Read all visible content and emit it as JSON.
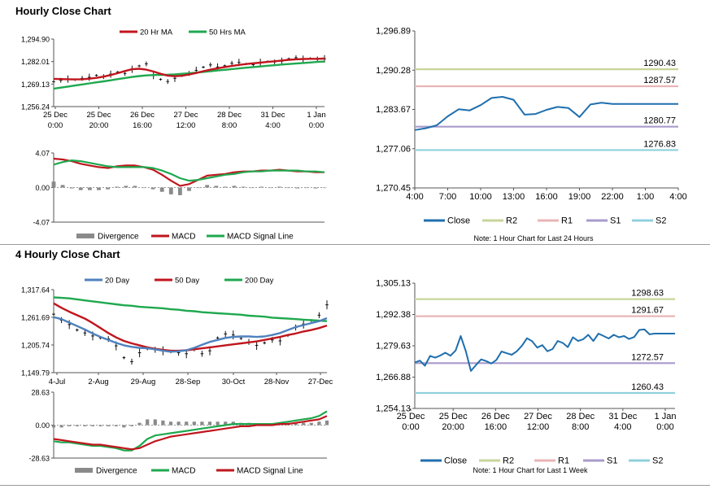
{
  "sections": {
    "hourly_title": "Hourly Close Chart",
    "four_hourly_title": "4 Hourly Close Chart"
  },
  "colors": {
    "ma_short": "#c0161d",
    "ma_long": "#1fa84f",
    "ma_mid_blue": "#4f81bd",
    "close": "#1f6fae",
    "r2": "#c7d59a",
    "r1": "#e9b5b5",
    "s1": "#a99bcb",
    "s2": "#8fd0de",
    "divergence": "#8a8a8a"
  },
  "chart_data": [
    {
      "id": "hourly_price",
      "type": "line",
      "title": "Hourly Close Chart",
      "legend": [
        "20 Hr MA",
        "50 Hrs MA"
      ],
      "y_ticks": [
        "1,294.90",
        "1,282.01",
        "1,269.13",
        "1,256.24"
      ],
      "ylim": [
        1256.24,
        1294.9
      ],
      "x_ticks": [
        [
          "25 Dec",
          "0:00"
        ],
        [
          "25 Dec",
          "20:00"
        ],
        [
          "26 Dec",
          "16:00"
        ],
        [
          "27 Dec",
          "12:00"
        ],
        [
          "28 Dec",
          "8:00"
        ],
        [
          "31 Dec",
          "4:00"
        ],
        [
          "1 Jan",
          "0:00"
        ]
      ],
      "series": [
        {
          "name": "Price",
          "values": [
            1270.5,
            1271.3,
            1272.0,
            1271.6,
            1272.4,
            1273.0,
            1274.1,
            1273.4,
            1274.8,
            1276.0,
            1275.2,
            1277.6,
            1279.5,
            1280.7,
            1274.0,
            1271.8,
            1270.6,
            1272.4,
            1273.9,
            1275.2,
            1277.0,
            1278.8,
            1280.1,
            1278.9,
            1279.6,
            1281.0,
            1281.5,
            1280.6,
            1280.2,
            1281.6,
            1282.0,
            1281.8,
            1282.2,
            1283.6,
            1284.2,
            1283.4,
            1283.8,
            1283.5,
            1283.6
          ]
        },
        {
          "name": "20 Hr MA",
          "values": [
            1272.1,
            1272.0,
            1271.9,
            1271.8,
            1271.9,
            1272.2,
            1272.7,
            1273.4,
            1274.3,
            1275.4,
            1276.6,
            1277.6,
            1277.9,
            1277.4,
            1276.3,
            1275.0,
            1274.0,
            1273.6,
            1273.9,
            1274.6,
            1275.5,
            1276.5,
            1277.4,
            1278.2,
            1278.9,
            1279.5,
            1280.1,
            1280.6,
            1281.0,
            1281.4,
            1281.8,
            1282.2,
            1282.6,
            1283.0,
            1283.3,
            1283.5,
            1283.6,
            1283.6,
            1283.7
          ]
        },
        {
          "name": "50 Hrs MA",
          "values": [
            1266.5,
            1267.1,
            1267.7,
            1268.3,
            1268.9,
            1269.5,
            1270.1,
            1270.7,
            1271.3,
            1272.0,
            1272.6,
            1273.2,
            1273.7,
            1274.1,
            1274.3,
            1274.4,
            1274.5,
            1274.7,
            1275.0,
            1275.3,
            1275.7,
            1276.1,
            1276.5,
            1276.9,
            1277.3,
            1277.7,
            1278.1,
            1278.5,
            1278.9,
            1279.2,
            1279.6,
            1279.9,
            1280.3,
            1280.6,
            1280.9,
            1281.2,
            1281.5,
            1281.8,
            1282.0
          ]
        }
      ]
    },
    {
      "id": "hourly_macd",
      "type": "line",
      "legend": [
        "Divergence",
        "MACD",
        "MACD Signal Line"
      ],
      "y_ticks": [
        "4.07",
        "0.00",
        "-4.07"
      ],
      "ylim": [
        -4.07,
        4.07
      ],
      "series": [
        {
          "name": "MACD",
          "values": [
            3.4,
            3.3,
            3.1,
            2.8,
            2.6,
            2.4,
            2.3,
            2.5,
            2.6,
            2.6,
            2.4,
            2.1,
            1.5,
            0.8,
            0.2,
            0.4,
            0.9,
            1.4,
            1.5,
            1.6,
            1.8,
            1.9,
            1.9,
            2.0,
            2.0,
            2.1,
            2.0,
            1.9,
            1.9,
            1.8,
            1.8
          ]
        },
        {
          "name": "MACD Signal Line",
          "values": [
            2.7,
            3.0,
            3.2,
            3.1,
            2.9,
            2.7,
            2.5,
            2.4,
            2.4,
            2.4,
            2.4,
            2.3,
            2.0,
            1.6,
            1.1,
            0.8,
            0.9,
            1.1,
            1.3,
            1.5,
            1.6,
            1.8,
            1.9,
            1.9,
            2.0,
            2.0,
            2.0,
            2.0,
            1.9,
            1.9,
            1.8
          ]
        },
        {
          "name": "Divergence",
          "values": [
            0.7,
            0.3,
            -0.1,
            -0.3,
            -0.3,
            -0.3,
            -0.2,
            0.1,
            0.2,
            0.2,
            0.0,
            -0.2,
            -0.5,
            -0.8,
            -0.9,
            -0.4,
            0.0,
            0.3,
            0.2,
            0.1,
            0.2,
            0.1,
            0.0,
            0.1,
            0.0,
            0.1,
            0.0,
            -0.1,
            0.0,
            -0.1,
            0.0
          ]
        }
      ]
    },
    {
      "id": "hourly_close",
      "type": "line",
      "y_ticks": [
        "1,296.89",
        "1,290.28",
        "1,283.67",
        "1,277.06",
        "1,270.45"
      ],
      "ylim": [
        1270.45,
        1296.89
      ],
      "x_ticks": [
        "4:00",
        "7:00",
        "10:00",
        "13:00",
        "16:00",
        "19:00",
        "22:00",
        "1:00",
        "4:00"
      ],
      "levels": [
        {
          "name": "R2",
          "value": 1290.43,
          "label": "1290.43",
          "color_key": "r2"
        },
        {
          "name": "R1",
          "value": 1287.57,
          "label": "1287.57",
          "color_key": "r1"
        },
        {
          "name": "S1",
          "value": 1280.77,
          "label": "1280.77",
          "color_key": "s1"
        },
        {
          "name": "S2",
          "value": 1276.83,
          "label": "1276.83",
          "color_key": "s2"
        }
      ],
      "series": [
        {
          "name": "Close",
          "values": [
            1280.2,
            1280.5,
            1281.0,
            1282.5,
            1283.7,
            1283.5,
            1284.4,
            1285.6,
            1285.8,
            1285.3,
            1282.8,
            1282.9,
            1283.6,
            1284.1,
            1283.9,
            1282.4,
            1284.5,
            1284.8,
            1284.6,
            1284.6,
            1284.6,
            1284.6,
            1284.6,
            1284.6,
            1284.6
          ]
        }
      ],
      "legend": [
        "Close",
        "R2",
        "R1",
        "S1",
        "S2"
      ],
      "note": "Note: 1 Hour Chart for Last 24 Hours"
    },
    {
      "id": "four_hourly_price",
      "type": "line",
      "title": "4 Hourly Close Chart",
      "legend": [
        "20 Day",
        "50 Day",
        "200 Day"
      ],
      "y_ticks": [
        "1,317.64",
        "1,261.69",
        "1,205.74",
        "1,149.79"
      ],
      "ylim": [
        1149.79,
        1317.64
      ],
      "x_ticks": [
        "4-Jul",
        "2-Aug",
        "29-Aug",
        "28-Sep",
        "30-Oct",
        "28-Nov",
        "27-Dec"
      ],
      "series": [
        {
          "name": "Price",
          "values": [
            1268,
            1256,
            1247,
            1236,
            1230,
            1224,
            1220,
            1218,
            1204,
            1180,
            1172,
            1190,
            1198,
            1196,
            1194,
            1192,
            1190,
            1188,
            1196,
            1188,
            1194,
            1220,
            1228,
            1226,
            1219,
            1212,
            1205,
            1210,
            1216,
            1214,
            1225,
            1241,
            1248,
            1255,
            1266,
            1287
          ]
        },
        {
          "name": "20 Day",
          "values": [
            1262,
            1258,
            1251,
            1244,
            1237,
            1229,
            1222,
            1216,
            1210,
            1205,
            1202,
            1200,
            1199,
            1197,
            1194,
            1192,
            1193,
            1195,
            1200,
            1206,
            1212,
            1216,
            1220,
            1222,
            1223,
            1223,
            1222,
            1223,
            1226,
            1230,
            1236,
            1242,
            1246,
            1250,
            1254,
            1260
          ]
        },
        {
          "name": "50 Day",
          "values": [
            1290,
            1281,
            1273,
            1266,
            1259,
            1250,
            1240,
            1230,
            1221,
            1214,
            1209,
            1205,
            1201,
            1198,
            1196,
            1194,
            1194,
            1195,
            1197,
            1199,
            1201,
            1203,
            1205,
            1207,
            1209,
            1211,
            1213,
            1216,
            1219,
            1222,
            1226,
            1229,
            1233,
            1236,
            1240,
            1245
          ]
        },
        {
          "name": "200 Day",
          "values": [
            1302,
            1301,
            1300,
            1298,
            1296,
            1294,
            1292,
            1290,
            1288,
            1286,
            1285,
            1283,
            1282,
            1281,
            1280,
            1278,
            1277,
            1275,
            1274,
            1272,
            1271,
            1270,
            1269,
            1268,
            1267,
            1265,
            1264,
            1263,
            1261,
            1260,
            1259,
            1258,
            1257,
            1256,
            1255,
            1254
          ]
        }
      ]
    },
    {
      "id": "four_hourly_macd",
      "type": "line",
      "legend": [
        "Divergence",
        "MACD",
        "MACD Signal Line"
      ],
      "y_ticks": [
        "28.63",
        "0.00",
        "-28.63"
      ],
      "ylim": [
        -28.63,
        28.63
      ],
      "series": [
        {
          "name": "MACD",
          "values": [
            -14,
            -15,
            -15,
            -16,
            -17,
            -18,
            -18,
            -19,
            -20,
            -22,
            -22,
            -18,
            -12,
            -9,
            -8,
            -7,
            -6,
            -5,
            -4,
            -3,
            -2,
            -1,
            0,
            1,
            1,
            1,
            1,
            1,
            1,
            2,
            3,
            4,
            5,
            6,
            8,
            12
          ]
        },
        {
          "name": "MACD Signal Line",
          "values": [
            -12,
            -13,
            -14,
            -15,
            -16,
            -17,
            -17,
            -18,
            -19,
            -20,
            -21,
            -20,
            -17,
            -14,
            -12,
            -10,
            -9,
            -8,
            -7,
            -6,
            -5,
            -4,
            -3,
            -2,
            -1,
            -1,
            0,
            0,
            0,
            1,
            1,
            2,
            3,
            4,
            5,
            8
          ]
        },
        {
          "name": "Divergence",
          "values": [
            -2,
            -2,
            -1,
            -1,
            -1,
            -1,
            -1,
            -1,
            -1,
            -2,
            -1,
            2,
            5,
            5,
            4,
            3,
            3,
            3,
            3,
            3,
            3,
            3,
            3,
            3,
            2,
            2,
            1,
            1,
            1,
            1,
            2,
            2,
            2,
            2,
            3,
            4
          ]
        }
      ]
    },
    {
      "id": "four_hourly_close",
      "type": "line",
      "y_ticks": [
        "1,305.13",
        "1,292.38",
        "1,279.63",
        "1,266.88",
        "1,254.13"
      ],
      "ylim": [
        1254.13,
        1305.13
      ],
      "x_ticks": [
        [
          "25 Dec",
          "0:00"
        ],
        [
          "25 Dec",
          "20:00"
        ],
        [
          "26 Dec",
          "16:00"
        ],
        [
          "27 Dec",
          "12:00"
        ],
        [
          "28 Dec",
          "8:00"
        ],
        [
          "31 Dec",
          "4:00"
        ],
        [
          "1 Jan",
          "0:00"
        ]
      ],
      "levels": [
        {
          "name": "R2",
          "value": 1298.63,
          "label": "1298.63",
          "color_key": "r2"
        },
        {
          "name": "R1",
          "value": 1291.67,
          "label": "1291.67",
          "color_key": "r1"
        },
        {
          "name": "S1",
          "value": 1272.57,
          "label": "1272.57",
          "color_key": "s1"
        },
        {
          "name": "S2",
          "value": 1260.43,
          "label": "1260.43",
          "color_key": "s2"
        }
      ],
      "series": [
        {
          "name": "Close",
          "values": [
            1272.8,
            1273.6,
            1271.5,
            1275.5,
            1274.8,
            1275.7,
            1276.8,
            1275.6,
            1277.7,
            1283.6,
            1277.5,
            1269.4,
            1271.8,
            1274.1,
            1273.4,
            1272.4,
            1273.9,
            1277.3,
            1276.6,
            1276.0,
            1277.4,
            1279.7,
            1282.7,
            1281.5,
            1278.9,
            1279.9,
            1277.4,
            1278.3,
            1281.6,
            1280.8,
            1279.1,
            1283.1,
            1281.6,
            1282.3,
            1284.1,
            1281.6,
            1284.6,
            1283.6,
            1282.6,
            1284.1,
            1283.1,
            1283.6,
            1282.4,
            1283.2,
            1286.1,
            1286.3,
            1284.3,
            1284.6,
            1284.6,
            1284.6,
            1284.6,
            1284.6
          ]
        }
      ],
      "legend": [
        "Close",
        "R2",
        "R1",
        "S1",
        "S2"
      ],
      "note": "Note: 1 Hour Chart for Last 1 Week"
    }
  ]
}
